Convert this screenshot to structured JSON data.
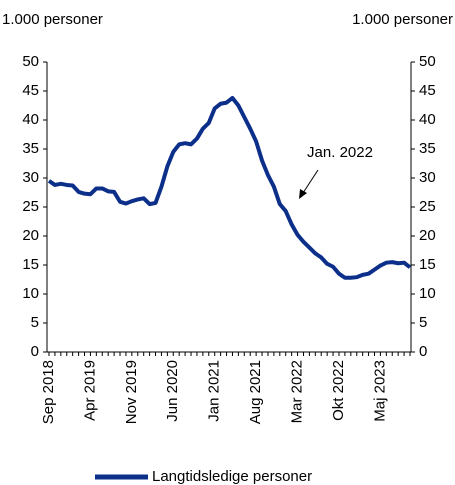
{
  "chart_data": {
    "type": "line",
    "ylabel": "1.000 personer",
    "y2label": "1.000 personer",
    "annotation": "Jan. 2022",
    "categories": [
      "Sep 2018",
      null,
      null,
      null,
      null,
      null,
      null,
      "Apr 2019",
      null,
      null,
      null,
      null,
      null,
      null,
      "Nov 2019",
      null,
      null,
      null,
      null,
      null,
      null,
      "Jun 2020",
      null,
      null,
      null,
      null,
      null,
      null,
      "Jan 2021",
      null,
      null,
      null,
      null,
      null,
      null,
      "Aug 2021",
      null,
      null,
      null,
      null,
      null,
      null,
      "Mar 2022",
      null,
      null,
      null,
      null,
      null,
      null,
      "Okt 2022",
      null,
      null,
      null,
      null,
      null,
      null,
      "Maj 2023",
      null,
      null,
      null,
      null,
      null
    ],
    "series": [
      {
        "name": "Langtidsledige personer",
        "color": "#0c2f8a",
        "values": [
          29.5,
          28.8,
          29,
          28.8,
          28.7,
          27.6,
          27.3,
          27.2,
          28.2,
          28.2,
          27.7,
          27.6,
          25.9,
          25.6,
          26,
          26.3,
          26.5,
          25.5,
          25.7,
          28.5,
          32,
          34.5,
          35.8,
          36,
          35.8,
          36.8,
          38.5,
          39.5,
          42,
          42.8,
          43,
          43.8,
          42.5,
          40.5,
          38.5,
          36.3,
          33,
          30.5,
          28.5,
          25.5,
          24.3,
          22,
          20.2,
          19,
          18,
          17,
          16.3,
          15.2,
          14.7,
          13.5,
          12.8,
          12.8,
          12.9,
          13.3,
          13.5,
          14.2,
          14.9,
          15.4,
          15.5,
          15.3,
          15.4,
          14.6
        ]
      }
    ],
    "ylim": [
      0,
      50
    ],
    "yticks": [
      0,
      5,
      10,
      15,
      20,
      25,
      30,
      35,
      40,
      45,
      50
    ],
    "y2lim": [
      0,
      50
    ],
    "y2ticks": [
      0,
      5,
      10,
      15,
      20,
      25,
      30,
      35,
      40,
      45,
      50
    ],
    "legend": "bottom"
  }
}
